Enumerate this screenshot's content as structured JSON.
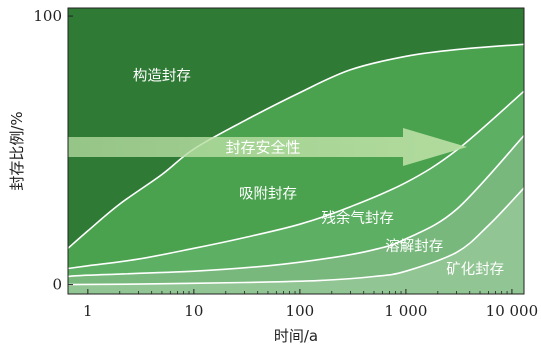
{
  "chart_data": {
    "type": "area",
    "x_scale": "log",
    "xlim": [
      0.65,
      13000
    ],
    "ylim": [
      -3.5,
      103
    ],
    "xlabel": "时间/a",
    "ylabel": "封存比例/%",
    "x_ticks": [
      {
        "value": 1,
        "label": "1"
      },
      {
        "value": 10,
        "label": "10"
      },
      {
        "value": 100,
        "label": "100"
      },
      {
        "value": 1000,
        "label": "1 000"
      },
      {
        "value": 10000,
        "label": "10 000"
      }
    ],
    "y_ticks": [
      {
        "value": 0,
        "label": "0"
      },
      {
        "value": 100,
        "label": "100"
      }
    ],
    "series": [
      {
        "name": "构造封存",
        "color": "#3a8a3e",
        "boundary": [
          [
            0.65,
            13.5
          ],
          [
            1,
            20
          ],
          [
            2,
            30
          ],
          [
            5,
            41
          ],
          [
            10,
            50.5
          ],
          [
            30,
            61
          ],
          [
            100,
            71.5
          ],
          [
            300,
            80
          ],
          [
            1000,
            85
          ],
          [
            3000,
            87.5
          ],
          [
            13000,
            89.5
          ]
        ]
      },
      {
        "name": "吸附封存",
        "color": "#4aa24f",
        "boundary": [
          [
            0.65,
            6
          ],
          [
            1,
            7
          ],
          [
            3,
            9.5
          ],
          [
            10,
            13.5
          ],
          [
            30,
            17.5
          ],
          [
            100,
            22.5
          ],
          [
            300,
            29
          ],
          [
            1000,
            38
          ],
          [
            3000,
            50
          ],
          [
            13000,
            72
          ]
        ]
      },
      {
        "name": "残余气封存",
        "color": "#5daf64",
        "boundary": [
          [
            0.65,
            3
          ],
          [
            1,
            3.5
          ],
          [
            10,
            5
          ],
          [
            50,
            7
          ],
          [
            200,
            10
          ],
          [
            500,
            13
          ],
          [
            1000,
            17
          ],
          [
            3000,
            28
          ],
          [
            13000,
            55.5
          ]
        ]
      },
      {
        "name": "溶解封存",
        "color": "#78b87d",
        "boundary": [
          [
            0.65,
            0
          ],
          [
            3,
            0.2
          ],
          [
            30,
            0.8
          ],
          [
            150,
            1.5
          ],
          [
            500,
            3
          ],
          [
            1000,
            5
          ],
          [
            3000,
            12
          ],
          [
            6000,
            22
          ],
          [
            13000,
            36
          ]
        ]
      },
      {
        "name": "矿化封存",
        "color": "#91c593",
        "boundary": []
      }
    ],
    "labels": [
      {
        "text": "构造封存",
        "x": 5,
        "y": 76
      },
      {
        "text": "吸附封存",
        "x": 50,
        "y": 32
      },
      {
        "text": "残余气封存",
        "x": 350,
        "y": 23
      },
      {
        "text": "溶解封存",
        "x": 1200,
        "y": 12.5
      },
      {
        "text": "矿化封存",
        "x": 4500,
        "y": 4
      }
    ],
    "arrow": {
      "text": "封存安全性",
      "color": "#b7dea2"
    },
    "colors": {
      "background": "#2f7a35",
      "axis": "#222222",
      "curve": "#ffffff"
    }
  }
}
